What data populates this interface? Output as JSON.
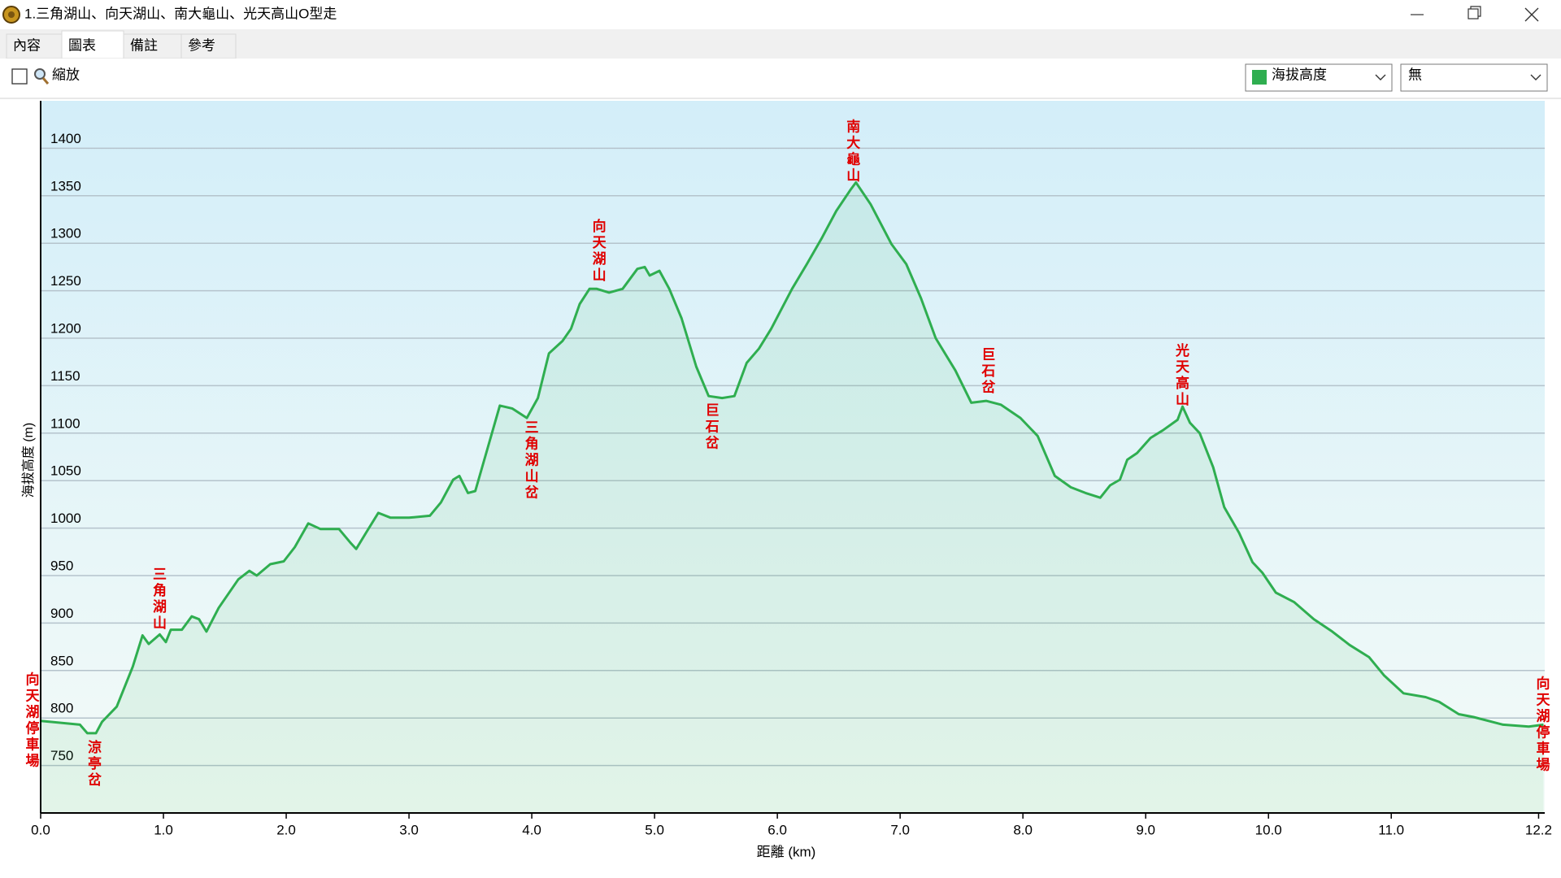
{
  "window": {
    "title": "1.三角湖山、向天湖山、南大龜山、光天高山O型走"
  },
  "tabs": [
    "內容",
    "圖表",
    "備註",
    "參考"
  ],
  "selected_tab": 1,
  "toolbar": {
    "zoom_label": "縮放",
    "series_select": "海拔高度",
    "compare_select": "無"
  },
  "chart_data": {
    "type": "line",
    "x_label": "距離 (km)",
    "y_label": "海拔高度 (m)",
    "color": "#2fae50",
    "grid": true,
    "xlim": [
      0,
      12.25
    ],
    "ylim": [
      700,
      1450
    ],
    "xticks": [
      {
        "value": 0,
        "label": "0.0"
      },
      {
        "value": 1,
        "label": "1.0"
      },
      {
        "value": 2,
        "label": "2.0"
      },
      {
        "value": 3,
        "label": "3.0"
      },
      {
        "value": 4,
        "label": "4.0"
      },
      {
        "value": 5,
        "label": "5.0"
      },
      {
        "value": 6,
        "label": "6.0"
      },
      {
        "value": 7,
        "label": "7.0"
      },
      {
        "value": 8,
        "label": "8.0"
      },
      {
        "value": 9,
        "label": "9.0"
      },
      {
        "value": 10,
        "label": "10.0"
      },
      {
        "value": 11,
        "label": "11.0"
      },
      12.2
    ],
    "yticks": [
      750,
      800,
      850,
      900,
      950,
      1000,
      1050,
      1100,
      1150,
      1200,
      1250,
      1300,
      1350,
      1400
    ],
    "x": [
      0,
      0.32,
      0.38,
      0.45,
      0.5,
      0.62,
      0.75,
      0.83,
      0.88,
      0.97,
      1.02,
      1.06,
      1.15,
      1.23,
      1.29,
      1.35,
      1.45,
      1.61,
      1.7,
      1.76,
      1.87,
      1.98,
      2.07,
      2.18,
      2.28,
      2.43,
      2.52,
      2.57,
      2.65,
      2.75,
      2.85,
      3.0,
      3.17,
      3.26,
      3.36,
      3.41,
      3.48,
      3.54,
      3.64,
      3.74,
      3.84,
      3.96,
      4.05,
      4.14,
      4.25,
      4.32,
      4.39,
      4.47,
      4.53,
      4.63,
      4.74,
      4.86,
      4.92,
      4.96,
      5.04,
      5.12,
      5.22,
      5.34,
      5.44,
      5.55,
      5.65,
      5.75,
      5.85,
      5.95,
      6.12,
      6.24,
      6.36,
      6.48,
      6.6,
      6.64,
      6.76,
      6.93,
      7.05,
      7.17,
      7.29,
      7.45,
      7.58,
      7.7,
      7.82,
      7.98,
      8.12,
      8.26,
      8.39,
      8.51,
      8.63,
      8.71,
      8.79,
      8.85,
      8.93,
      9.04,
      9.14,
      9.26,
      9.3,
      9.36,
      9.44,
      9.55,
      9.64,
      9.76,
      9.87,
      9.95,
      10.06,
      10.21,
      10.37,
      10.52,
      10.66,
      10.82,
      10.94,
      11.1,
      11.28,
      11.39,
      11.55,
      11.67,
      11.91,
      12.12,
      12.24
    ],
    "values": [
      797,
      793,
      784,
      784,
      796,
      812,
      854,
      887,
      878,
      888,
      880,
      893,
      893,
      907,
      904,
      891,
      916,
      946,
      955,
      950,
      962,
      965,
      980,
      1005,
      999,
      999,
      985,
      978,
      995,
      1016,
      1011,
      1011,
      1013,
      1027,
      1051,
      1055,
      1037,
      1039,
      1084,
      1129,
      1126,
      1116,
      1137,
      1184,
      1197,
      1210,
      1236,
      1252,
      1252,
      1248,
      1252,
      1273,
      1275,
      1266,
      1271,
      1252,
      1221,
      1170,
      1139,
      1137,
      1139,
      1174,
      1189,
      1210,
      1252,
      1278,
      1305,
      1334,
      1357,
      1364,
      1341,
      1299,
      1278,
      1242,
      1200,
      1166,
      1132,
      1134,
      1130,
      1116,
      1097,
      1055,
      1043,
      1037,
      1032,
      1045,
      1051,
      1072,
      1079,
      1095,
      1103,
      1114,
      1128,
      1111,
      1100,
      1064,
      1022,
      995,
      964,
      953,
      932,
      922,
      904,
      891,
      877,
      864,
      845,
      826,
      822,
      817,
      804,
      801,
      793,
      791,
      793
    ],
    "annotations": [
      {
        "text": "向天湖停車場",
        "x": 0
      },
      {
        "text": "涼亭岔",
        "x": 0.42
      },
      {
        "text": "三角湖山",
        "x": 0.95
      },
      {
        "text": "三角湖山岔",
        "x": 3.98
      },
      {
        "text": "向天湖山",
        "x": 4.53
      },
      {
        "text": "巨石岔",
        "x": 5.45
      },
      {
        "text": "南大龜山",
        "x": 6.6
      },
      {
        "text": "巨石岔",
        "x": 7.7
      },
      {
        "text": "光天高山",
        "x": 9.28
      },
      {
        "text": "向天湖停車場",
        "x": 12.24
      }
    ]
  }
}
